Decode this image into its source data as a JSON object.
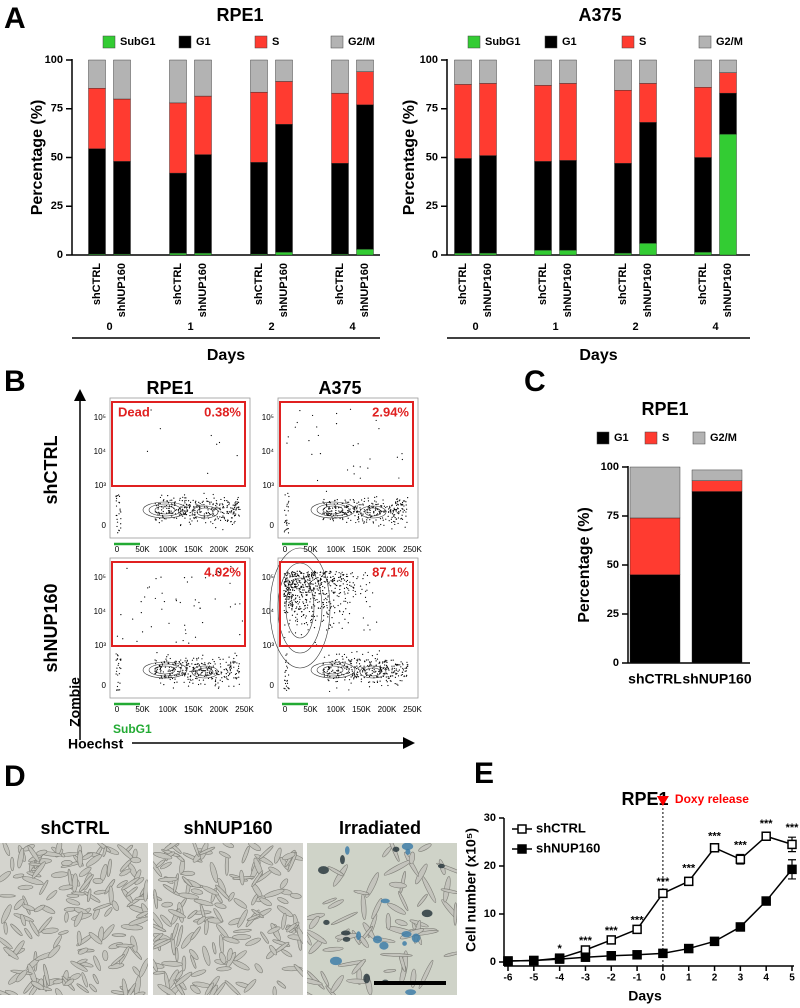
{
  "panel_labels": [
    "A",
    "B",
    "C",
    "D",
    "E"
  ],
  "chart_data": [
    {
      "type": "bar",
      "stacked": true,
      "title": "RPE1",
      "categories": [
        "shCTRL",
        "shNUP160",
        "shCTRL",
        "shNUP160",
        "shCTRL",
        "shNUP160",
        "shCTRL",
        "shNUP160"
      ],
      "groups": [
        "0",
        "1",
        "2",
        "4"
      ],
      "xlabel": "Days",
      "ylabel": "Percentage (%)",
      "ylim": [
        0,
        100
      ],
      "yticks": [
        0,
        25,
        50,
        75,
        100
      ],
      "series": [
        {
          "name": "SubG1",
          "color": "#33cc33",
          "values": [
            0.5,
            0.5,
            1,
            1,
            0.5,
            1.5,
            0.5,
            3
          ]
        },
        {
          "name": "G1",
          "color": "#000000",
          "values": [
            54,
            47.5,
            41,
            50.5,
            47,
            65.5,
            46.5,
            74
          ]
        },
        {
          "name": "S",
          "color": "#ff3b30",
          "values": [
            31,
            32,
            36,
            30,
            36,
            22,
            36,
            17
          ]
        },
        {
          "name": "G2/M",
          "color": "#b3b3b3",
          "values": [
            14.5,
            20,
            22,
            18.5,
            16.5,
            11,
            17,
            6
          ]
        }
      ]
    },
    {
      "type": "bar",
      "stacked": true,
      "title": "A375",
      "categories": [
        "shCTRL",
        "shNUP160",
        "shCTRL",
        "shNUP160",
        "shCTRL",
        "shNUP160",
        "shCTRL",
        "shNUP160"
      ],
      "groups": [
        "0",
        "1",
        "2",
        "4"
      ],
      "xlabel": "Days",
      "ylabel": "Percentage (%)",
      "ylim": [
        0,
        100
      ],
      "yticks": [
        0,
        25,
        50,
        75,
        100
      ],
      "series": [
        {
          "name": "SubG1",
          "color": "#33cc33",
          "values": [
            1,
            1,
            2.5,
            2.5,
            1,
            6,
            1.5,
            62
          ]
        },
        {
          "name": "G1",
          "color": "#000000",
          "values": [
            48.5,
            50,
            45.5,
            46,
            46,
            62,
            48.5,
            21
          ]
        },
        {
          "name": "S",
          "color": "#ff3b30",
          "values": [
            38,
            37,
            39,
            39.5,
            37.5,
            20,
            36,
            10.5
          ]
        },
        {
          "name": "G2/M",
          "color": "#b3b3b3",
          "values": [
            12.5,
            12,
            13,
            12,
            15.5,
            12,
            14,
            6.5
          ]
        }
      ]
    },
    {
      "type": "bar",
      "stacked": true,
      "title": "RPE1",
      "categories": [
        "shCTRL",
        "shNUP160"
      ],
      "ylabel": "Percentage (%)",
      "ylim": [
        0,
        100
      ],
      "yticks": [
        0,
        25,
        50,
        75,
        100
      ],
      "series": [
        {
          "name": "G1",
          "color": "#000000",
          "values": [
            45,
            87.5
          ]
        },
        {
          "name": "S",
          "color": "#ff3b30",
          "values": [
            29,
            5.5
          ]
        },
        {
          "name": "G2/M",
          "color": "#b3b3b3",
          "values": [
            26,
            5.5
          ]
        }
      ]
    },
    {
      "type": "line",
      "title": "RPE1",
      "xlabel": "Days",
      "ylabel": "Cell number (x10⁵)",
      "x": [
        -6,
        -5,
        -4,
        -3,
        -2,
        -1,
        0,
        1,
        2,
        3,
        4,
        5
      ],
      "xlim": [
        -6,
        5
      ],
      "xticks": [
        -6,
        -5,
        -4,
        -3,
        -2,
        -1,
        0,
        1,
        2,
        3,
        4,
        5
      ],
      "ylim": [
        0,
        30
      ],
      "yticks": [
        0,
        10,
        20,
        30
      ],
      "vline": 0,
      "annotation": "Doxy release",
      "annotation_color": "#ff0000",
      "series": [
        {
          "name": "shCTRL",
          "color": "#000000",
          "marker": "open-square",
          "values": [
            0.2,
            0.3,
            0.8,
            2.5,
            4.6,
            6.8,
            14.3,
            16.8,
            23.8,
            21.4,
            26.2,
            24.5
          ],
          "errors": [
            null,
            null,
            null,
            null,
            null,
            null,
            0.5,
            0.8,
            0.5,
            1.0,
            0.7,
            1.5
          ]
        },
        {
          "name": "shNUP160",
          "color": "#000000",
          "marker": "filled-square",
          "values": [
            0.2,
            0.3,
            0.6,
            1.0,
            1.3,
            1.5,
            1.8,
            2.8,
            4.3,
            7.3,
            12.7,
            19.3
          ],
          "errors": [
            null,
            null,
            null,
            null,
            null,
            null,
            null,
            null,
            null,
            null,
            null,
            2.0
          ]
        }
      ],
      "significance": [
        null,
        null,
        "*",
        "***",
        "***",
        "***",
        "***",
        "***",
        "***",
        "***",
        "***",
        "***"
      ]
    }
  ],
  "flow": {
    "columns": [
      "RPE1",
      "A375"
    ],
    "rows": [
      "shCTRL",
      "shNUP160"
    ],
    "gate_label": "Dead",
    "percentages": [
      [
        "0.38%",
        "2.94%"
      ],
      [
        "4.02%",
        "87.1%"
      ]
    ],
    "yticks": [
      "10⁵",
      "10⁴",
      "10³",
      "0"
    ],
    "xticks": [
      "0",
      "50K",
      "100K",
      "150K",
      "200K",
      "250K"
    ],
    "subg1": "SubG1",
    "ylabel": "Zombie",
    "xlabel": "Hoechst"
  },
  "images": {
    "labels": [
      "shCTRL",
      "shNUP160",
      "Irradiated"
    ]
  }
}
